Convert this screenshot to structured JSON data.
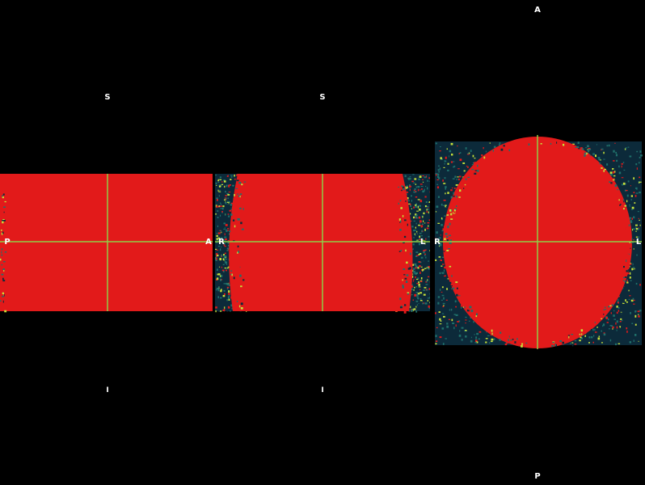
{
  "colors": {
    "background": "#000000",
    "tissue": "#e21a1a",
    "noise_dark": "#0c2a3a",
    "noise_mid": "#1f6f6a",
    "noise_light": "#c8e23a",
    "crosshair": "#8fce46",
    "label": "#ffffff"
  },
  "viewports": {
    "sagittal": {
      "label_top": "S",
      "label_bottom": "I",
      "label_left": "P",
      "label_right": "A"
    },
    "coronal": {
      "label_top": "S",
      "label_bottom": "I",
      "label_left": "R",
      "label_right": "L"
    },
    "axial": {
      "label_top": "A",
      "label_bottom": "P",
      "label_left": "R",
      "label_right": "L"
    }
  }
}
